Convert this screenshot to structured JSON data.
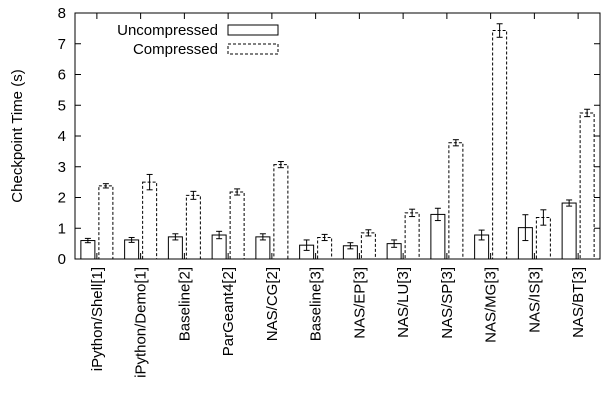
{
  "chart_data": {
    "type": "bar",
    "ylabel": "Checkpoint Time (s)",
    "ylim": [
      0,
      8
    ],
    "yticks": [
      "0",
      "1",
      "2",
      "3",
      "4",
      "5",
      "6",
      "7",
      "8"
    ],
    "legend_position": "top-left",
    "grid": false,
    "categories": [
      "iPython/Shell[1]",
      "iPython/Demo[1]",
      "Baseline[2]",
      "ParGeant4[2]",
      "NAS/CG[2]",
      "Baseline[3]",
      "NAS/EP[3]",
      "NAS/LU[3]",
      "NAS/SP[3]",
      "NAS/MG[3]",
      "NAS/IS[3]",
      "NAS/BT[3]"
    ],
    "series": [
      {
        "name": "Uncompressed",
        "style": "solid",
        "values": [
          0.6,
          0.62,
          0.72,
          0.78,
          0.72,
          0.45,
          0.43,
          0.5,
          1.45,
          0.78,
          1.02,
          1.82
        ],
        "errors": [
          0.07,
          0.08,
          0.1,
          0.12,
          0.1,
          0.17,
          0.1,
          0.12,
          0.2,
          0.16,
          0.42,
          0.1
        ]
      },
      {
        "name": "Compressed",
        "style": "dashed",
        "values": [
          2.38,
          2.5,
          2.07,
          2.18,
          3.07,
          0.7,
          0.85,
          1.5,
          3.78,
          7.43,
          1.35,
          4.75
        ],
        "errors": [
          0.07,
          0.25,
          0.13,
          0.1,
          0.1,
          0.1,
          0.1,
          0.12,
          0.1,
          0.22,
          0.25,
          0.12
        ]
      }
    ]
  }
}
